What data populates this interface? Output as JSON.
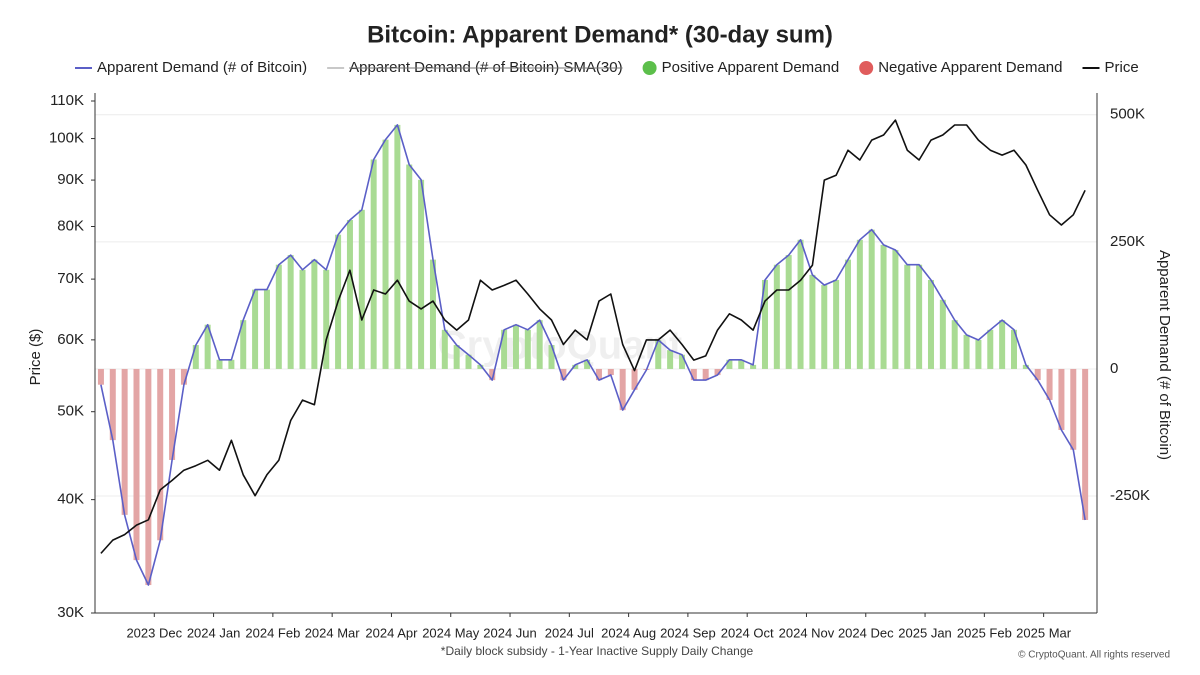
{
  "chart_data": {
    "type": "line",
    "title": "Bitcoin: Apparent Demand* (30-day sum)",
    "ylabel": "Price ($)",
    "y2label": "Apparent Demand (# of Bitcoin)",
    "footnote": "*Daily block subsidy - 1-Year Inactive Supply Daily Change",
    "credit": "© CryptoQuant. All rights reserved",
    "watermark": "CryptoQuant",
    "grid": true,
    "yscale": "log",
    "xlim": [
      0,
      16.9
    ],
    "xticks": [
      {
        "value": 1,
        "label": "2023 Dec"
      },
      {
        "value": 2,
        "label": "2024 Jan"
      },
      {
        "value": 3,
        "label": "2024 Feb"
      },
      {
        "value": 4,
        "label": "2024 Mar"
      },
      {
        "value": 5,
        "label": "2024 Apr"
      },
      {
        "value": 6,
        "label": "2024 May"
      },
      {
        "value": 7,
        "label": "2024 Jun"
      },
      {
        "value": 8,
        "label": "2024 Jul"
      },
      {
        "value": 9,
        "label": "2024 Aug"
      },
      {
        "value": 10,
        "label": "2024 Sep"
      },
      {
        "value": 11,
        "label": "2024 Oct"
      },
      {
        "value": 12,
        "label": "2024 Nov"
      },
      {
        "value": 13,
        "label": "2024 Dec"
      },
      {
        "value": 14,
        "label": "2025 Jan"
      },
      {
        "value": 15,
        "label": "2025 Feb"
      },
      {
        "value": 16,
        "label": "2025 Mar"
      }
    ],
    "ylim": [
      30000,
      110000
    ],
    "yticks": [
      {
        "value": 30000,
        "label": "30K"
      },
      {
        "value": 40000,
        "label": "40K"
      },
      {
        "value": 50000,
        "label": "50K"
      },
      {
        "value": 60000,
        "label": "60K"
      },
      {
        "value": 70000,
        "label": "70K"
      },
      {
        "value": 80000,
        "label": "80K"
      },
      {
        "value": 90000,
        "label": "90K"
      },
      {
        "value": 100000,
        "label": "100K"
      },
      {
        "value": 110000,
        "label": "110K"
      }
    ],
    "y2lim": [
      -480000,
      527000
    ],
    "y2ticks": [
      {
        "value": -250000,
        "label": "-250K"
      },
      0,
      {
        "value": 250000,
        "label": "250K"
      },
      {
        "value": 500000,
        "label": "500K"
      }
    ],
    "x": [
      0.1,
      0.3,
      0.5,
      0.7,
      0.9,
      1.1,
      1.3,
      1.5,
      1.7,
      1.9,
      2.1,
      2.3,
      2.5,
      2.7,
      2.9,
      3.1,
      3.3,
      3.5,
      3.7,
      3.9,
      4.1,
      4.3,
      4.5,
      4.7,
      4.9,
      5.1,
      5.3,
      5.5,
      5.7,
      5.9,
      6.1,
      6.3,
      6.5,
      6.7,
      6.9,
      7.1,
      7.3,
      7.5,
      7.7,
      7.9,
      8.1,
      8.3,
      8.5,
      8.7,
      8.9,
      9.1,
      9.3,
      9.5,
      9.7,
      9.9,
      10.1,
      10.3,
      10.5,
      10.7,
      10.9,
      11.1,
      11.3,
      11.5,
      11.7,
      11.9,
      12.1,
      12.3,
      12.5,
      12.7,
      12.9,
      13.1,
      13.3,
      13.5,
      13.7,
      13.9,
      14.1,
      14.3,
      14.5,
      14.7,
      14.9,
      15.1,
      15.3,
      15.5,
      15.7,
      15.9,
      16.1,
      16.3,
      16.5,
      16.7
    ],
    "series": [
      {
        "name": "Apparent Demand (# of Bitcoin)",
        "color": "#5b5fc7",
        "axis": "y2",
        "values": [
          -31000,
          -140000,
          -287000,
          -376000,
          -425000,
          -337000,
          -179000,
          -31000,
          47000,
          87000,
          18000,
          18000,
          96000,
          156000,
          156000,
          205000,
          224000,
          195000,
          215000,
          195000,
          264000,
          293000,
          313000,
          412000,
          451000,
          480000,
          402000,
          372000,
          215000,
          77000,
          47000,
          28000,
          8000,
          -22000,
          77000,
          87000,
          77000,
          96000,
          47000,
          -22000,
          8000,
          18000,
          -22000,
          -12000,
          -81000,
          -41000,
          -2000,
          57000,
          37000,
          28000,
          -22000,
          -22000,
          -12000,
          18000,
          18000,
          8000,
          175000,
          205000,
          224000,
          254000,
          185000,
          165000,
          175000,
          215000,
          254000,
          274000,
          244000,
          234000,
          205000,
          205000,
          175000,
          136000,
          96000,
          67000,
          57000,
          77000,
          96000,
          77000,
          8000,
          -22000,
          -61000,
          -120000,
          -159000,
          -297000
        ]
      },
      {
        "name": "Apparent Demand (# of Bitcoin) SMA(30)",
        "color": "#c8c8c8",
        "hidden": true
      },
      {
        "name": "Price",
        "color": "#111111",
        "values": [
          34900,
          36100,
          36600,
          37500,
          38000,
          41000,
          42000,
          43100,
          43600,
          44200,
          43100,
          46500,
          42600,
          40400,
          42600,
          44200,
          48900,
          51500,
          50900,
          60000,
          66200,
          71600,
          63100,
          68100,
          67400,
          69800,
          66200,
          64900,
          66200,
          63100,
          61500,
          63100,
          69800,
          68100,
          68900,
          69800,
          67400,
          64900,
          63100,
          59300,
          61500,
          60000,
          66200,
          67400,
          59300,
          55500,
          60000,
          60000,
          61500,
          59300,
          57000,
          57600,
          61500,
          64100,
          63100,
          61500,
          66200,
          68100,
          68100,
          69800,
          72500,
          90000,
          91100,
          97100,
          94700,
          99600,
          100900,
          104800,
          97100,
          94700,
          99600,
          100900,
          103500,
          103500,
          99600,
          97100,
          95900,
          97100,
          93500,
          87700,
          82400,
          80300,
          82400,
          87700
        ]
      }
    ],
    "fill_legend": [
      {
        "name": "Positive Apparent Demand",
        "color": "#5cbf4b",
        "bar_color": "#a9db93"
      },
      {
        "name": "Negative Apparent Demand",
        "color": "#e05c5c",
        "bar_color": "#e3a5a5"
      }
    ]
  }
}
